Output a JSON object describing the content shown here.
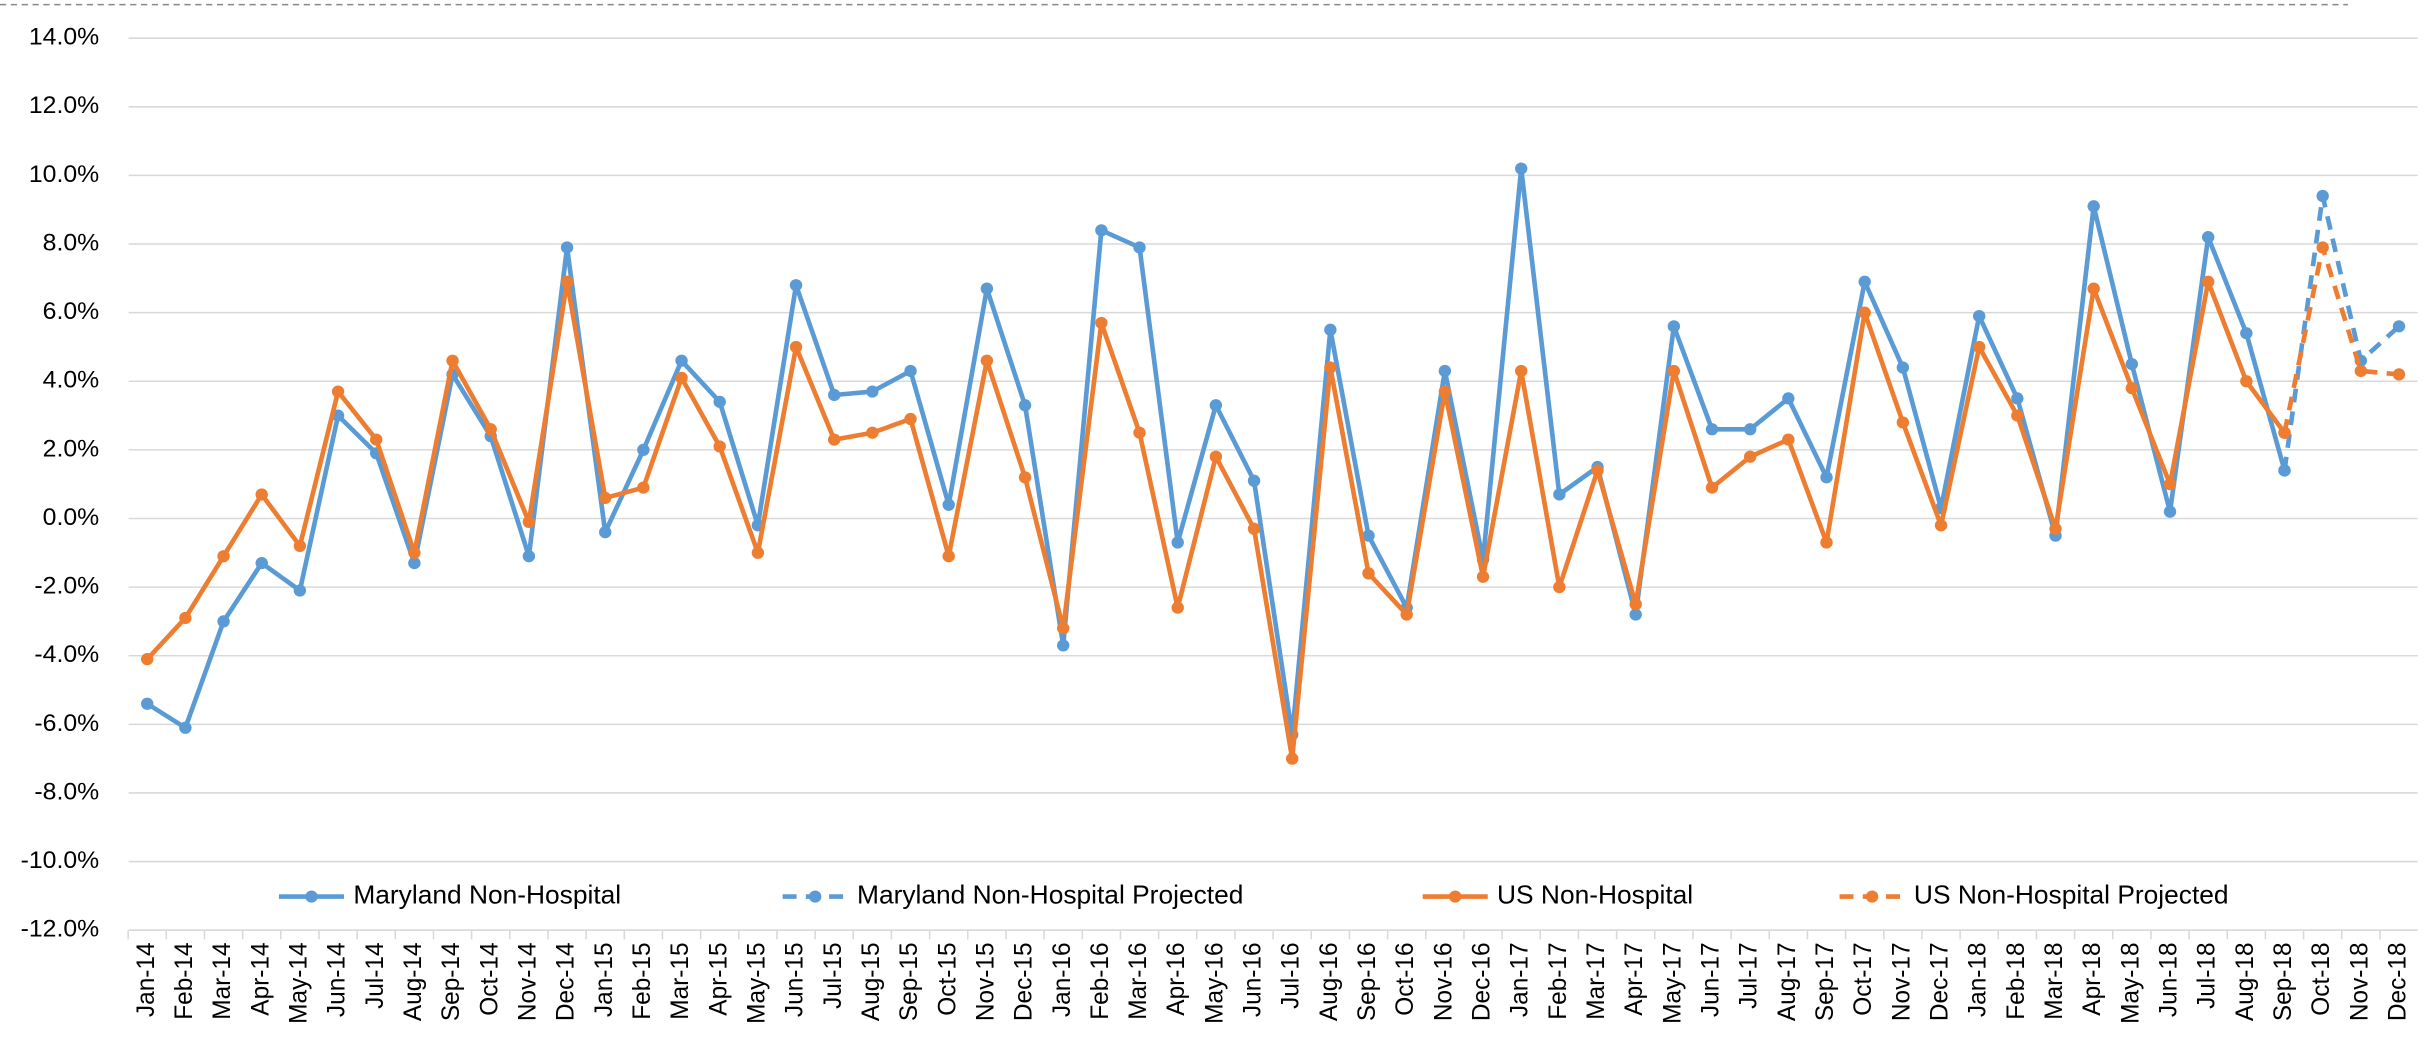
{
  "chart_data": {
    "type": "line",
    "categories": [
      "Jan-14",
      "Feb-14",
      "Mar-14",
      "Apr-14",
      "May-14",
      "Jun-14",
      "Jul-14",
      "Aug-14",
      "Sep-14",
      "Oct-14",
      "Nov-14",
      "Dec-14",
      "Jan-15",
      "Feb-15",
      "Mar-15",
      "Apr-15",
      "May-15",
      "Jun-15",
      "Jul-15",
      "Aug-15",
      "Sep-15",
      "Oct-15",
      "Nov-15",
      "Dec-15",
      "Jan-16",
      "Feb-16",
      "Mar-16",
      "Apr-16",
      "May-16",
      "Jun-16",
      "Jul-16",
      "Aug-16",
      "Sep-16",
      "Oct-16",
      "Nov-16",
      "Dec-16",
      "Jan-17",
      "Feb-17",
      "Mar-17",
      "Apr-17",
      "May-17",
      "Jun-17",
      "Jul-17",
      "Aug-17",
      "Sep-17",
      "Oct-17",
      "Nov-17",
      "Dec-17",
      "Jan-18",
      "Feb-18",
      "Mar-18",
      "Apr-18",
      "May-18",
      "Jun-18",
      "Jul-18",
      "Aug-18",
      "Sep-18",
      "Oct-18",
      "Nov-18",
      "Dec-18"
    ],
    "series": [
      {
        "name": "Maryland Non-Hospital",
        "color": "#5b9bd5",
        "line_style": "solid",
        "values": [
          -5.4,
          -6.1,
          -3.0,
          -1.3,
          -2.1,
          3.0,
          1.9,
          -1.3,
          4.2,
          2.4,
          -1.1,
          7.9,
          -0.4,
          2.0,
          4.6,
          3.4,
          -0.2,
          6.8,
          3.6,
          3.7,
          4.3,
          0.4,
          6.7,
          3.3,
          -3.7,
          8.4,
          7.9,
          -0.7,
          3.3,
          1.1,
          -6.3,
          5.5,
          -0.5,
          -2.6,
          4.3,
          -1.2,
          10.2,
          0.7,
          1.5,
          -2.8,
          5.6,
          2.6,
          2.6,
          3.5,
          1.2,
          6.9,
          4.4,
          0.3,
          5.9,
          3.5,
          -0.5,
          9.1,
          4.5,
          0.2,
          8.2,
          5.4,
          1.4,
          null,
          null,
          null
        ]
      },
      {
        "name": "Maryland Non-Hospital Projected",
        "color": "#5b9bd5",
        "line_style": "dashed",
        "values": [
          null,
          null,
          null,
          null,
          null,
          null,
          null,
          null,
          null,
          null,
          null,
          null,
          null,
          null,
          null,
          null,
          null,
          null,
          null,
          null,
          null,
          null,
          null,
          null,
          null,
          null,
          null,
          null,
          null,
          null,
          null,
          null,
          null,
          null,
          null,
          null,
          null,
          null,
          null,
          null,
          null,
          null,
          null,
          null,
          null,
          null,
          null,
          null,
          null,
          null,
          null,
          null,
          null,
          null,
          null,
          null,
          1.4,
          9.4,
          4.6,
          5.6
        ]
      },
      {
        "name": "US Non-Hospital",
        "color": "#ed7d31",
        "line_style": "solid",
        "values": [
          -4.1,
          -2.9,
          -1.1,
          0.7,
          -0.8,
          3.7,
          2.3,
          -1.0,
          4.6,
          2.6,
          -0.1,
          6.9,
          0.6,
          0.9,
          4.1,
          2.1,
          -1.0,
          5.0,
          2.3,
          2.5,
          2.9,
          -1.1,
          4.6,
          1.2,
          -3.2,
          5.7,
          2.5,
          -2.6,
          1.8,
          -0.3,
          -7.0,
          4.4,
          -1.6,
          -2.8,
          3.7,
          -1.7,
          4.3,
          -2.0,
          1.4,
          -2.5,
          4.3,
          0.9,
          1.8,
          2.3,
          -0.7,
          6.0,
          2.8,
          -0.2,
          5.0,
          3.0,
          -0.3,
          6.7,
          3.8,
          1.0,
          6.9,
          4.0,
          2.5,
          null,
          null,
          null
        ]
      },
      {
        "name": "US Non-Hospital Projected",
        "color": "#ed7d31",
        "line_style": "dashed",
        "values": [
          null,
          null,
          null,
          null,
          null,
          null,
          null,
          null,
          null,
          null,
          null,
          null,
          null,
          null,
          null,
          null,
          null,
          null,
          null,
          null,
          null,
          null,
          null,
          null,
          null,
          null,
          null,
          null,
          null,
          null,
          null,
          null,
          null,
          null,
          null,
          null,
          null,
          null,
          null,
          null,
          null,
          null,
          null,
          null,
          null,
          null,
          null,
          null,
          null,
          null,
          null,
          null,
          null,
          null,
          null,
          null,
          2.5,
          7.9,
          4.3,
          4.2
        ]
      }
    ],
    "ylim": [
      -12,
      14
    ],
    "yticks": [
      {
        "value": -12,
        "label": "-12.0%"
      },
      {
        "value": -10,
        "label": "-10.0%"
      },
      {
        "value": -8,
        "label": "-8.0%"
      },
      {
        "value": -6,
        "label": "-6.0%"
      },
      {
        "value": -4,
        "label": "-4.0%"
      },
      {
        "value": -2,
        "label": "-2.0%"
      },
      {
        "value": 0,
        "label": "0.0%"
      },
      {
        "value": 2,
        "label": "2.0%"
      },
      {
        "value": 4,
        "label": "4.0%"
      },
      {
        "value": 6,
        "label": "6.0%"
      },
      {
        "value": 8,
        "label": "8.0%"
      },
      {
        "value": 10,
        "label": "10.0%"
      },
      {
        "value": 12,
        "label": "12.0%"
      },
      {
        "value": 14,
        "label": "14.0%"
      }
    ],
    "grid": true,
    "legend": "bottom"
  }
}
